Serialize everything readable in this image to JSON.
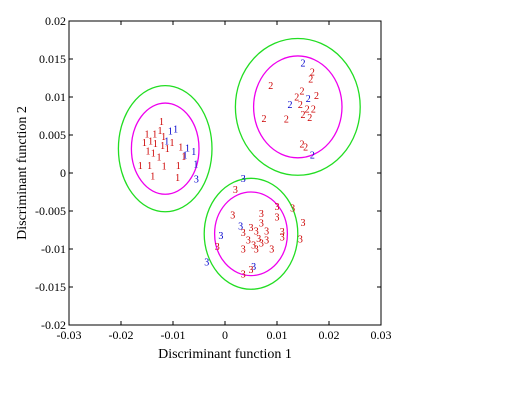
{
  "chart_data": {
    "type": "scatter",
    "xlabel": "Discriminant function 1",
    "ylabel": "Discriminant function 2",
    "xlim": [
      -0.03,
      0.03
    ],
    "ylim": [
      -0.02,
      0.02
    ],
    "x_ticks": [
      "-0.03",
      "-0.02",
      "-0.01",
      "0",
      "0.01",
      "0.02",
      "0.03"
    ],
    "y_ticks": [
      "0.02",
      "0.015",
      "0.01",
      "0.005",
      "0",
      "-0.005",
      "-0.01",
      "-0.015",
      "-0.02"
    ],
    "grid": false,
    "colors": {
      "correct": "#cc0000",
      "misclassified": "#0000cc",
      "inner_ellipse": "#ee00ee",
      "outer_ellipse": "#22dd22"
    },
    "series": [
      {
        "marker": "1",
        "points": [
          [
            -0.0122,
            0.0068,
            "red"
          ],
          [
            -0.0105,
            0.0055,
            "blue"
          ],
          [
            -0.0095,
            0.0058,
            "blue"
          ],
          [
            -0.015,
            0.0051,
            "red"
          ],
          [
            -0.0135,
            0.0051,
            "red"
          ],
          [
            -0.0125,
            0.0056,
            "red"
          ],
          [
            -0.0118,
            0.0048,
            "red"
          ],
          [
            -0.0112,
            0.0042,
            "blue"
          ],
          [
            -0.0102,
            0.004,
            "red"
          ],
          [
            -0.0155,
            0.004,
            "red"
          ],
          [
            -0.0143,
            0.0042,
            "red"
          ],
          [
            -0.0134,
            0.0039,
            "red"
          ],
          [
            -0.012,
            0.0036,
            "red"
          ],
          [
            -0.0111,
            0.0032,
            "red"
          ],
          [
            -0.0085,
            0.0034,
            "red"
          ],
          [
            -0.0072,
            0.0033,
            "blue"
          ],
          [
            -0.0148,
            0.0029,
            "red"
          ],
          [
            -0.0138,
            0.0026,
            "red"
          ],
          [
            -0.0127,
            0.0021,
            "red"
          ],
          [
            -0.0079,
            0.0022,
            "red"
          ],
          [
            -0.0077,
            0.0024,
            "blue"
          ],
          [
            -0.0163,
            0.001,
            "red"
          ],
          [
            -0.0145,
            0.001,
            "red"
          ],
          [
            -0.0117,
            0.0009,
            "red"
          ],
          [
            -0.009,
            0.001,
            "red"
          ],
          [
            -0.0056,
            0.0012,
            "blue"
          ],
          [
            -0.006,
            0.0028,
            "blue"
          ],
          [
            -0.0139,
            -0.0004,
            "red"
          ],
          [
            -0.0091,
            -0.0006,
            "red"
          ]
        ]
      },
      {
        "marker": "2",
        "points": [
          [
            0.015,
            0.0145,
            "blue"
          ],
          [
            0.0168,
            0.0133,
            "red"
          ],
          [
            0.0165,
            0.0124,
            "red"
          ],
          [
            0.0088,
            0.0115,
            "red"
          ],
          [
            0.0148,
            0.0108,
            "red"
          ],
          [
            0.0138,
            0.01,
            "red"
          ],
          [
            0.016,
            0.0098,
            "blue"
          ],
          [
            0.0176,
            0.0102,
            "red"
          ],
          [
            0.0125,
            0.009,
            "blue"
          ],
          [
            0.0145,
            0.009,
            "red"
          ],
          [
            0.0158,
            0.0084,
            "red"
          ],
          [
            0.017,
            0.0084,
            "red"
          ],
          [
            0.015,
            0.0077,
            "red"
          ],
          [
            0.0163,
            0.0073,
            "red"
          ],
          [
            0.0075,
            0.0072,
            "red"
          ],
          [
            0.0118,
            0.0071,
            "red"
          ],
          [
            0.0148,
            0.0038,
            "red"
          ],
          [
            0.0155,
            0.0034,
            "red"
          ],
          [
            0.0168,
            0.0024,
            "blue"
          ]
        ]
      },
      {
        "marker": "3",
        "points": [
          [
            -0.0055,
            -0.0008,
            "blue"
          ],
          [
            0.0035,
            -0.0007,
            "blue"
          ],
          [
            0.002,
            -0.0022,
            "red"
          ],
          [
            0.01,
            -0.0044,
            "red"
          ],
          [
            0.007,
            -0.0053,
            "red"
          ],
          [
            0.013,
            -0.0046,
            "red"
          ],
          [
            0.0015,
            -0.0055,
            "red"
          ],
          [
            0.007,
            -0.0066,
            "red"
          ],
          [
            0.01,
            -0.0058,
            "red"
          ],
          [
            0.003,
            -0.007,
            "blue"
          ],
          [
            0.005,
            -0.0072,
            "red"
          ],
          [
            0.015,
            -0.0065,
            "red"
          ],
          [
            0.0035,
            -0.0078,
            "red"
          ],
          [
            0.006,
            -0.0076,
            "red"
          ],
          [
            0.008,
            -0.0076,
            "red"
          ],
          [
            0.011,
            -0.0077,
            "red"
          ],
          [
            -0.0008,
            -0.0082,
            "blue"
          ],
          [
            0.0045,
            -0.0088,
            "red"
          ],
          [
            0.0065,
            -0.0086,
            "red"
          ],
          [
            0.008,
            -0.0088,
            "red"
          ],
          [
            0.011,
            -0.0084,
            "red"
          ],
          [
            0.0145,
            -0.0087,
            "red"
          ],
          [
            0.0055,
            -0.0095,
            "red"
          ],
          [
            0.007,
            -0.0092,
            "red"
          ],
          [
            0.0035,
            -0.01,
            "red"
          ],
          [
            0.006,
            -0.01,
            "red"
          ],
          [
            0.009,
            -0.01,
            "red"
          ],
          [
            -0.0015,
            -0.0097,
            "red"
          ],
          [
            -0.0035,
            -0.0117,
            "blue"
          ],
          [
            0.0055,
            -0.0123,
            "blue"
          ],
          [
            0.005,
            -0.0127,
            "red"
          ],
          [
            0.0035,
            -0.0133,
            "red"
          ]
        ]
      }
    ],
    "ellipses": [
      {
        "cx": -0.0115,
        "cy": 0.0032,
        "inner": {
          "rx": 0.0065,
          "ry": 0.006
        },
        "outer": {
          "rx": 0.009,
          "ry": 0.0083
        }
      },
      {
        "cx": 0.014,
        "cy": 0.0087,
        "inner": {
          "rx": 0.0085,
          "ry": 0.0067
        },
        "outer": {
          "rx": 0.012,
          "ry": 0.009
        }
      },
      {
        "cx": 0.005,
        "cy": -0.008,
        "inner": {
          "rx": 0.007,
          "ry": 0.0055
        },
        "outer": {
          "rx": 0.009,
          "ry": 0.0073
        }
      }
    ]
  }
}
